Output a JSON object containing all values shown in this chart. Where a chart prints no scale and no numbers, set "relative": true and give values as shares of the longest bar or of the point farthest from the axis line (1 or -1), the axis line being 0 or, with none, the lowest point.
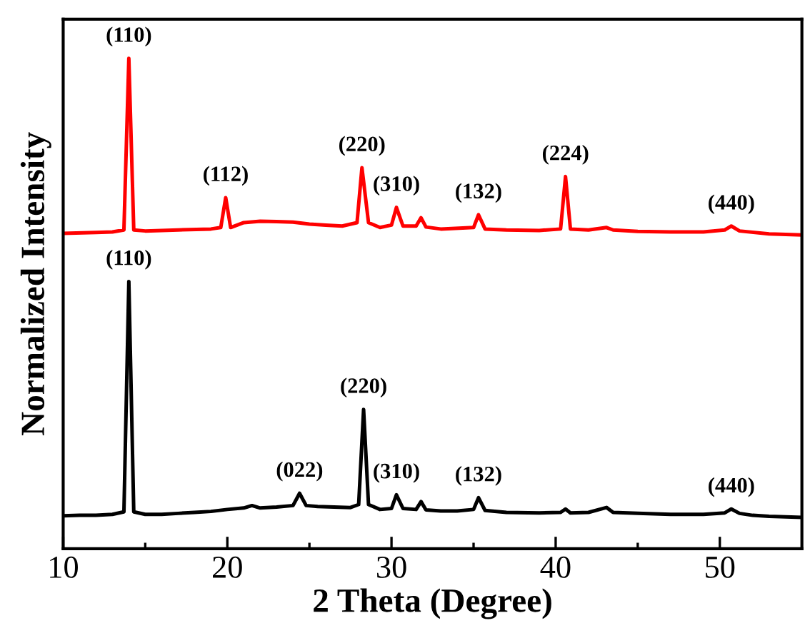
{
  "chart_data": {
    "type": "line",
    "relative": true,
    "xlabel": "2 Theta (Degree)",
    "ylabel": "Normalized Intensity",
    "xlim": [
      10,
      55
    ],
    "xticks": [
      10,
      {
        "value": 15,
        "label": null
      },
      20,
      {
        "value": 25,
        "label": null
      },
      30,
      {
        "value": 35,
        "label": null
      },
      40,
      {
        "value": 45,
        "label": null
      },
      50
    ],
    "tick_labels": "x",
    "legend": false,
    "grid": false,
    "line_style": "solid",
    "marker": "none",
    "series": [
      {
        "color": "#ff0000",
        "x": [
          10,
          12,
          13,
          13.7,
          14.0,
          14.3,
          15,
          17,
          19,
          19.6,
          19.9,
          20.2,
          21,
          22,
          23,
          24,
          25,
          26,
          27,
          27.9,
          28.2,
          28.6,
          29.3,
          30.0,
          30.3,
          30.7,
          31.5,
          31.8,
          32.1,
          33,
          35.0,
          35.3,
          35.7,
          37,
          39,
          40.3,
          40.6,
          40.9,
          42,
          43.1,
          43.5,
          45,
          47,
          49,
          50.3,
          50.7,
          51.2,
          53,
          55
        ],
        "values": [
          0.643,
          0.645,
          0.646,
          0.65,
          1.0,
          0.65,
          0.648,
          0.65,
          0.652,
          0.655,
          0.716,
          0.655,
          0.665,
          0.668,
          0.667,
          0.666,
          0.662,
          0.66,
          0.658,
          0.665,
          0.777,
          0.665,
          0.655,
          0.66,
          0.696,
          0.658,
          0.658,
          0.675,
          0.656,
          0.652,
          0.655,
          0.681,
          0.652,
          0.65,
          0.649,
          0.652,
          0.759,
          0.652,
          0.65,
          0.655,
          0.65,
          0.647,
          0.646,
          0.646,
          0.65,
          0.658,
          0.648,
          0.642,
          0.64
        ]
      },
      {
        "color": "#000000",
        "x": [
          10,
          11,
          12,
          13,
          13.7,
          14.0,
          14.3,
          15,
          16,
          17,
          18,
          19,
          20,
          21,
          21.5,
          22,
          23,
          24,
          24.4,
          24.8,
          25.5,
          26.5,
          27.5,
          28.0,
          28.3,
          28.6,
          29.3,
          30.0,
          30.3,
          30.7,
          31.5,
          31.8,
          32.1,
          33,
          34,
          35.0,
          35.3,
          35.7,
          37,
          39,
          40.3,
          40.6,
          40.9,
          42,
          43.1,
          43.5,
          45,
          47,
          49,
          50.3,
          50.7,
          51.2,
          52,
          53,
          55
        ],
        "values": [
          0.067,
          0.068,
          0.068,
          0.07,
          0.075,
          0.545,
          0.075,
          0.07,
          0.07,
          0.072,
          0.074,
          0.076,
          0.08,
          0.083,
          0.088,
          0.083,
          0.085,
          0.088,
          0.113,
          0.088,
          0.086,
          0.085,
          0.084,
          0.09,
          0.284,
          0.09,
          0.08,
          0.082,
          0.11,
          0.082,
          0.08,
          0.096,
          0.079,
          0.077,
          0.077,
          0.08,
          0.104,
          0.078,
          0.074,
          0.073,
          0.074,
          0.081,
          0.073,
          0.074,
          0.084,
          0.074,
          0.072,
          0.07,
          0.07,
          0.073,
          0.081,
          0.072,
          0.068,
          0.066,
          0.064
        ]
      }
    ],
    "annotations": [
      {
        "text": "(110)",
        "x": 14.0,
        "y": 1.0
      },
      {
        "text": "(112)",
        "x": 19.9,
        "y": 0.716
      },
      {
        "text": "(220)",
        "x": 28.2,
        "y": 0.777
      },
      {
        "text": "(310)",
        "x": 30.3,
        "y": 0.696
      },
      {
        "text": "(132)",
        "x": 35.3,
        "y": 0.681
      },
      {
        "text": "(224)",
        "x": 40.6,
        "y": 0.759
      },
      {
        "text": "(440)",
        "x": 50.7,
        "y": 0.658
      },
      {
        "text": "(110)",
        "x": 14.0,
        "y": 0.545
      },
      {
        "text": "(022)",
        "x": 24.4,
        "y": 0.113
      },
      {
        "text": "(220)",
        "x": 28.3,
        "y": 0.284
      },
      {
        "text": "(310)",
        "x": 30.3,
        "y": 0.11
      },
      {
        "text": "(132)",
        "x": 35.3,
        "y": 0.104
      },
      {
        "text": "(440)",
        "x": 50.7,
        "y": 0.081
      }
    ]
  }
}
